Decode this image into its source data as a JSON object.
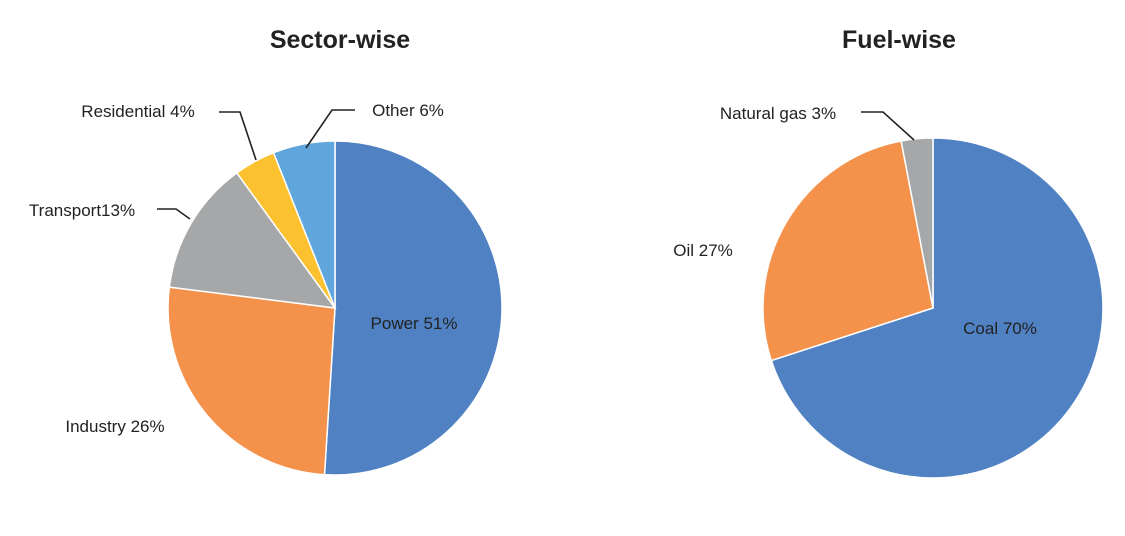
{
  "chart_data": [
    {
      "type": "pie",
      "title": "Sector-wise",
      "slices": [
        {
          "label": "Power",
          "value": 51,
          "display": "Power 51%",
          "color": "#4f81c3"
        },
        {
          "label": "Industry",
          "value": 26,
          "display": "Industry 26%",
          "color": "#f4914a"
        },
        {
          "label": "Transport",
          "value": 13,
          "display": "Transport13%",
          "color": "#a5a7a8"
        },
        {
          "label": "Residential",
          "value": 4,
          "display": "Residential 4%",
          "color": "#fbc12f"
        },
        {
          "label": "Other",
          "value": 6,
          "display": "Other 6%",
          "color": "#5ea6db"
        }
      ]
    },
    {
      "type": "pie",
      "title": "Fuel-wise",
      "slices": [
        {
          "label": "Coal",
          "value": 70,
          "display": "Coal 70%",
          "color": "#4f81c3"
        },
        {
          "label": "Oil",
          "value": 27,
          "display": "Oil 27%",
          "color": "#f4914a"
        },
        {
          "label": "Natural gas",
          "value": 3,
          "display": "Natural gas 3%",
          "color": "#a5a7a8"
        }
      ]
    }
  ]
}
